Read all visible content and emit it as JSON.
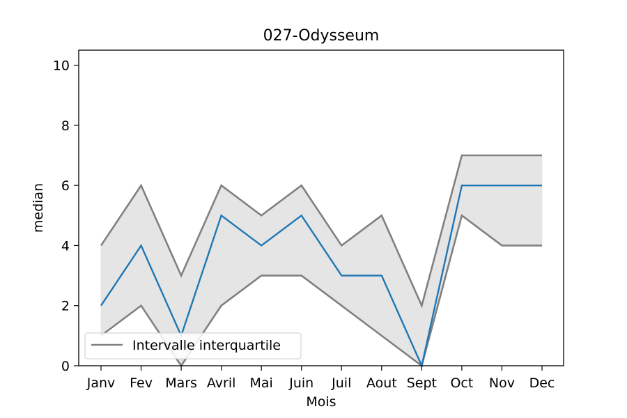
{
  "chart_data": {
    "type": "line",
    "title": "027-Odysseum",
    "xlabel": "Mois",
    "ylabel": "median",
    "categories": [
      "Janv",
      "Fev",
      "Mars",
      "Avril",
      "Mai",
      "Juin",
      "Juil",
      "Aout",
      "Sept",
      "Oct",
      "Nov",
      "Dec"
    ],
    "series": [
      {
        "name": "",
        "role": "median",
        "color": "#1f77b4",
        "values": [
          2,
          4,
          1,
          5,
          4,
          5,
          3,
          3,
          0,
          6,
          6,
          6
        ]
      },
      {
        "name": "Intervalle interquartile",
        "role": "q3",
        "color": "#808080",
        "values": [
          4,
          6,
          3,
          6,
          5,
          6,
          4,
          5,
          2,
          7,
          7,
          7
        ]
      },
      {
        "name": "",
        "role": "q1",
        "color": "#808080",
        "values": [
          1,
          2,
          0,
          2,
          3,
          3,
          2,
          1,
          0,
          5,
          4,
          4
        ]
      }
    ],
    "fill_color": "#e5e5e5",
    "ylim": [
      0,
      10.5
    ],
    "yticks": [
      0,
      2,
      4,
      6,
      8,
      10
    ],
    "legend": {
      "placement": "lower-left",
      "entries": [
        "Intervalle interquartile"
      ]
    },
    "grid": false
  }
}
